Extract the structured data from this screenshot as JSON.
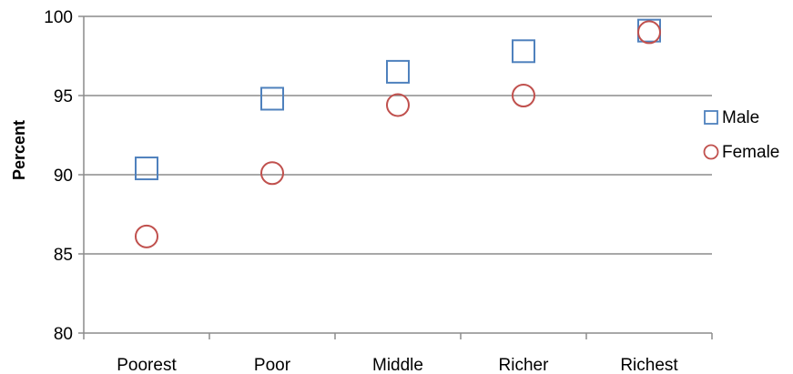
{
  "chart_data": {
    "type": "scatter",
    "title": "",
    "xlabel": "",
    "ylabel": "Percent",
    "categories": [
      "Poorest",
      "Poor",
      "Middle",
      "Richer",
      "Richest"
    ],
    "ylim": [
      80,
      100
    ],
    "yticks": [
      "80",
      "85",
      "90",
      "95",
      "100"
    ],
    "grid": true,
    "legend_position": "right",
    "series": [
      {
        "name": "Male",
        "marker": "square",
        "color": "#4f81bd",
        "values": [
          90.4,
          94.8,
          96.5,
          97.8,
          99.1
        ]
      },
      {
        "name": "Female",
        "marker": "circle",
        "color": "#c0504d",
        "values": [
          86.1,
          90.1,
          94.4,
          95.0,
          99.0
        ]
      }
    ]
  }
}
